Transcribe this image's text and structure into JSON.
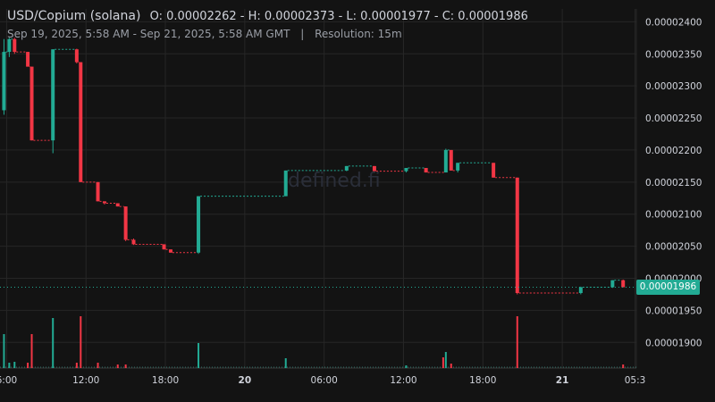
{
  "header": {
    "title": "USD/Copium (solana)",
    "ohlc": "O: 0.00002262 - H: 0.00002373 - L: 0.00001977 - C: 0.00001986",
    "date_range": "Sep 19, 2025, 5:58 AM - Sep 21, 2025, 5:58 AM GMT",
    "separator": "|",
    "resolution": "Resolution: 15m"
  },
  "watermark": "defined.fi",
  "last_price_label": "0.00001986",
  "colors": {
    "background": "#131313",
    "up": "#22ab94",
    "down": "#f23645",
    "grid": "#262626",
    "text": "#d1d4dc"
  },
  "chart_data": {
    "type": "candlestick",
    "x_tick_labels": [
      "6:00",
      "12:00",
      "18:00",
      "20",
      "06:00",
      "12:00",
      "18:00",
      "21",
      "05:3"
    ],
    "y_tick_labels": [
      "0.00002400",
      "0.00002350",
      "0.00002300",
      "0.00002250",
      "0.00002200",
      "0.00002150",
      "0.00002100",
      "0.00002050",
      "0.00002000",
      "0.00001950",
      "0.00001900"
    ],
    "ylim": [
      1.86e-05,
      2.42e-05
    ],
    "x_range_hours": [
      5.5,
      53.6
    ],
    "last_price": 1.986e-05,
    "candles": [
      {
        "t": 5.8,
        "o": 2.262,
        "h": 2.373,
        "l": 2.255,
        "c": 2.353
      },
      {
        "t": 6.2,
        "o": 2.353,
        "h": 2.375,
        "l": 2.345,
        "c": 2.373
      },
      {
        "t": 6.6,
        "o": 2.373,
        "h": 2.375,
        "l": 2.35,
        "c": 2.353
      },
      {
        "t": 7.6,
        "o": 2.353,
        "h": 2.353,
        "l": 2.33,
        "c": 2.33
      },
      {
        "t": 7.9,
        "o": 2.33,
        "h": 2.33,
        "l": 2.215,
        "c": 2.215
      },
      {
        "t": 9.5,
        "o": 2.215,
        "h": 2.357,
        "l": 2.195,
        "c": 2.357
      },
      {
        "t": 11.3,
        "o": 2.357,
        "h": 2.358,
        "l": 2.335,
        "c": 2.337
      },
      {
        "t": 11.6,
        "o": 2.337,
        "h": 2.337,
        "l": 2.15,
        "c": 2.15
      },
      {
        "t": 12.9,
        "o": 2.15,
        "h": 2.15,
        "l": 2.12,
        "c": 2.12
      },
      {
        "t": 13.4,
        "o": 2.12,
        "h": 2.12,
        "l": 2.115,
        "c": 2.117
      },
      {
        "t": 14.4,
        "o": 2.117,
        "h": 2.117,
        "l": 2.112,
        "c": 2.112
      },
      {
        "t": 15.0,
        "o": 2.112,
        "h": 2.112,
        "l": 2.058,
        "c": 2.06
      },
      {
        "t": 15.6,
        "o": 2.06,
        "h": 2.062,
        "l": 2.052,
        "c": 2.053
      },
      {
        "t": 17.9,
        "o": 2.053,
        "h": 2.053,
        "l": 2.045,
        "c": 2.045
      },
      {
        "t": 18.4,
        "o": 2.045,
        "h": 2.045,
        "l": 2.04,
        "c": 2.04
      },
      {
        "t": 20.5,
        "o": 2.04,
        "h": 2.128,
        "l": 2.038,
        "c": 2.128
      },
      {
        "t": 27.1,
        "o": 2.128,
        "h": 2.168,
        "l": 2.128,
        "c": 2.168
      },
      {
        "t": 31.7,
        "o": 2.168,
        "h": 2.175,
        "l": 2.167,
        "c": 2.175
      },
      {
        "t": 33.8,
        "o": 2.175,
        "h": 2.175,
        "l": 2.167,
        "c": 2.167
      },
      {
        "t": 36.2,
        "o": 2.167,
        "h": 2.172,
        "l": 2.165,
        "c": 2.172
      },
      {
        "t": 37.7,
        "o": 2.172,
        "h": 2.172,
        "l": 2.165,
        "c": 2.165
      },
      {
        "t": 39.2,
        "o": 2.165,
        "h": 2.202,
        "l": 2.165,
        "c": 2.2
      },
      {
        "t": 39.6,
        "o": 2.2,
        "h": 2.2,
        "l": 2.168,
        "c": 2.168
      },
      {
        "t": 40.1,
        "o": 2.168,
        "h": 2.18,
        "l": 2.165,
        "c": 2.18
      },
      {
        "t": 42.8,
        "o": 2.18,
        "h": 2.18,
        "l": 2.157,
        "c": 2.157
      },
      {
        "t": 44.6,
        "o": 2.157,
        "h": 2.157,
        "l": 1.975,
        "c": 1.977
      },
      {
        "t": 49.4,
        "o": 1.977,
        "h": 1.987,
        "l": 1.975,
        "c": 1.986
      },
      {
        "t": 51.8,
        "o": 1.986,
        "h": 1.997,
        "l": 1.985,
        "c": 1.997
      },
      {
        "t": 52.6,
        "o": 1.997,
        "h": 1.998,
        "l": 1.986,
        "c": 1.986
      }
    ],
    "volume_spikes": [
      {
        "t": 5.8,
        "v": 38,
        "up": true
      },
      {
        "t": 6.2,
        "v": 6,
        "up": true
      },
      {
        "t": 6.6,
        "v": 7,
        "up": true
      },
      {
        "t": 7.6,
        "v": 6,
        "up": false
      },
      {
        "t": 7.9,
        "v": 38,
        "up": false
      },
      {
        "t": 9.5,
        "v": 56,
        "up": true
      },
      {
        "t": 11.3,
        "v": 6,
        "up": false
      },
      {
        "t": 11.6,
        "v": 58,
        "up": false
      },
      {
        "t": 12.9,
        "v": 6,
        "up": false
      },
      {
        "t": 14.4,
        "v": 4,
        "up": false
      },
      {
        "t": 15.0,
        "v": 4,
        "up": false
      },
      {
        "t": 20.5,
        "v": 28,
        "up": true
      },
      {
        "t": 27.1,
        "v": 11,
        "up": true
      },
      {
        "t": 36.2,
        "v": 3,
        "up": true
      },
      {
        "t": 39.0,
        "v": 12,
        "up": false
      },
      {
        "t": 39.2,
        "v": 18,
        "up": true
      },
      {
        "t": 39.6,
        "v": 5,
        "up": false
      },
      {
        "t": 44.6,
        "v": 58,
        "up": false
      },
      {
        "t": 52.6,
        "v": 4,
        "up": false
      }
    ]
  }
}
